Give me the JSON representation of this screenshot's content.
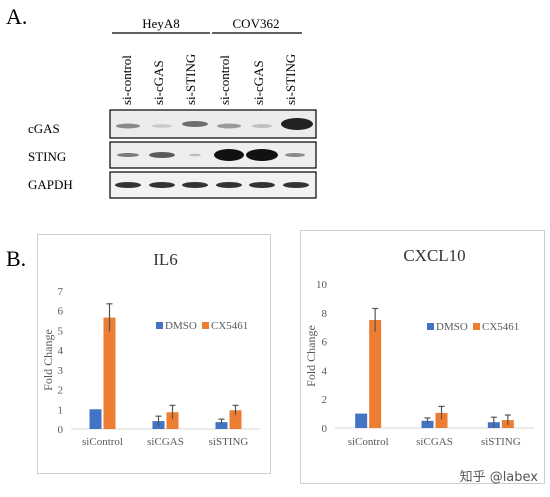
{
  "panel_a": {
    "letter": "A.",
    "groups": [
      "HeyA8",
      "COV362"
    ],
    "lanes": [
      "si-control",
      "si-cGAS",
      "si-STING",
      "si-control",
      "si-cGAS",
      "si-STING"
    ],
    "rows": [
      "cGAS",
      "STING",
      "GAPDH"
    ]
  },
  "panel_b": {
    "letter": "B."
  },
  "colors": {
    "dmso": "#4472c4",
    "cx5461": "#ed7d31",
    "error": "#555555",
    "axis": "#d9d9d9",
    "text": "#595959"
  },
  "chart_data": [
    {
      "type": "bar",
      "title": "IL6",
      "ylabel": "Fold Change",
      "xlabel": "",
      "categories": [
        "siControl",
        "siCGAS",
        "siSTING"
      ],
      "ylim": [
        0,
        7
      ],
      "yticks": [
        0,
        1,
        2,
        3,
        4,
        5,
        6,
        7
      ],
      "legend": "right",
      "series": [
        {
          "name": "DMSO",
          "values": [
            1.0,
            0.4,
            0.35
          ],
          "errors": [
            0.0,
            0.25,
            0.15
          ]
        },
        {
          "name": "CX5461",
          "values": [
            5.65,
            0.85,
            0.95
          ],
          "errors": [
            0.7,
            0.35,
            0.25
          ]
        }
      ]
    },
    {
      "type": "bar",
      "title": "CXCL10",
      "ylabel": "Fold Change",
      "xlabel": "",
      "categories": [
        "siControl",
        "siCGAS",
        "siSTING"
      ],
      "ylim": [
        0,
        10
      ],
      "yticks": [
        0,
        2,
        4,
        6,
        8,
        10
      ],
      "legend": "right",
      "series": [
        {
          "name": "DMSO",
          "values": [
            1.0,
            0.5,
            0.4
          ],
          "errors": [
            0.0,
            0.2,
            0.35
          ]
        },
        {
          "name": "CX5461",
          "values": [
            7.5,
            1.05,
            0.55
          ],
          "errors": [
            0.8,
            0.45,
            0.35
          ]
        }
      ]
    }
  ],
  "watermark": "知乎 @labex"
}
